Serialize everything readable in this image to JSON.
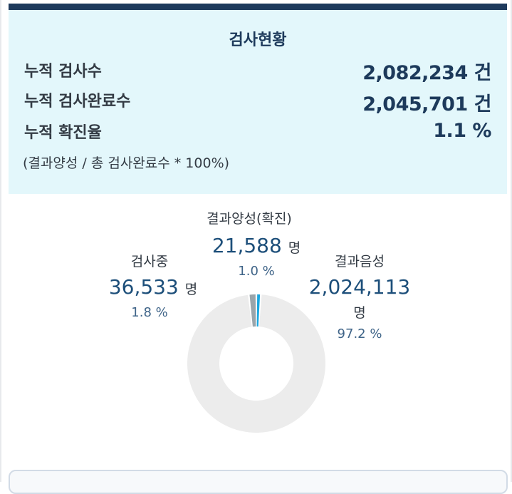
{
  "summary": {
    "title": "검사현황",
    "rows": [
      {
        "label": "누적 검사수",
        "value": "2,082,234 건"
      },
      {
        "label": "누적 검사완료수",
        "value": "2,045,701 건"
      },
      {
        "label": "누적 확진율",
        "value": "1.1 %"
      }
    ],
    "note": "(결과양성 / 총 검사완료수 * 100%)"
  },
  "chart_data": {
    "type": "pie",
    "variant": "donut",
    "unit": "명",
    "slices": [
      {
        "label": "결과양성(확진)",
        "value": 21588,
        "display": "21,588",
        "percent": "1.0 %",
        "color": "#1aa7e0"
      },
      {
        "label": "결과음성",
        "value": 2024113,
        "display": "2,024,113",
        "percent": "97.2 %",
        "color": "#ececec"
      },
      {
        "label": "검사중",
        "value": 36533,
        "display": "36,533",
        "percent": "1.8 %",
        "color": "#9aa5ab"
      }
    ]
  }
}
